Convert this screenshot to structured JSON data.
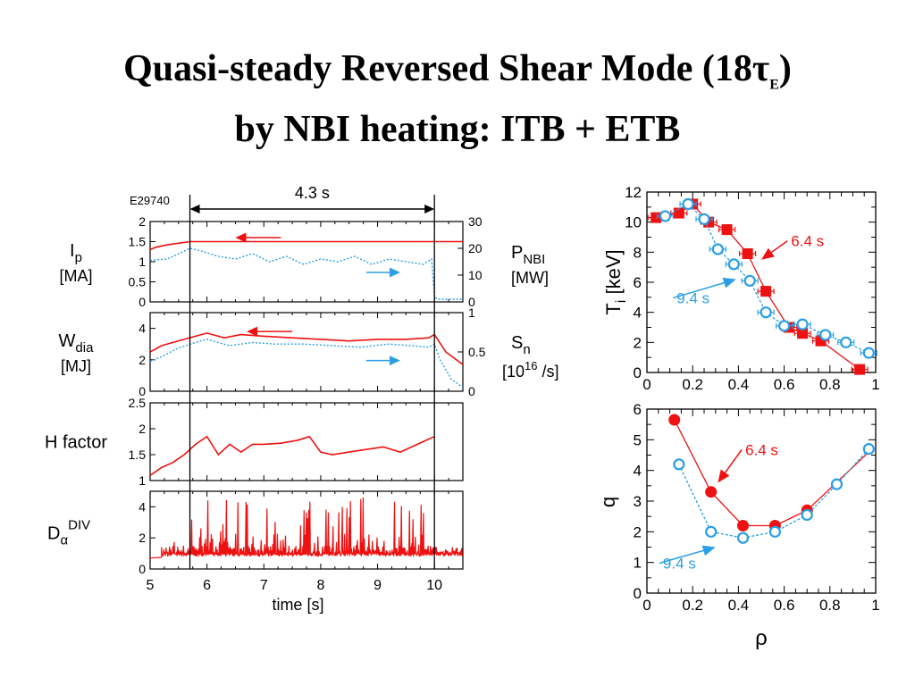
{
  "slide": {
    "title_line1_text": "Quasi-steady Reversed Shear Mode (18",
    "title_tau": "τ",
    "title_sub": "E",
    "title_close": ")",
    "title_line2": "by NBI heating: ITB + ETB"
  },
  "colors": {
    "red": "#ee1111",
    "blue": "#2a9fe6",
    "axis": "#000000"
  },
  "chart_data": [
    {
      "id": "time-traces",
      "type": "line",
      "shot_label": "E29740",
      "interval_label": "4.3 s",
      "interval": [
        5.7,
        10.0
      ],
      "xlabel": "time [s]",
      "xlim": [
        5,
        10.5
      ],
      "xticks": [
        5,
        6,
        7,
        8,
        9,
        10
      ],
      "panels": [
        {
          "name": "ip",
          "ylabel_left": "I",
          "ylabel_left_sub": "p",
          "ylabel_left_unit": "[MA]",
          "ylim_left": [
            0,
            2
          ],
          "yticks_left": [
            "0",
            "0.5",
            "1",
            "1.5",
            "2"
          ],
          "ylabel_right": "P",
          "ylabel_right_sub": "NBI",
          "ylabel_right_unit": "[MW]",
          "ylim_right": [
            0,
            30
          ],
          "yticks_right": [
            "0",
            "10",
            "20",
            "30"
          ],
          "series": [
            {
              "axis": "left",
              "style": "solid",
              "color": "red",
              "x": [
                5.0,
                5.1,
                5.3,
                5.5,
                5.7,
                6.0,
                10.5
              ],
              "y": [
                1.3,
                1.36,
                1.42,
                1.46,
                1.5,
                1.5,
                1.5
              ]
            },
            {
              "axis": "right",
              "style": "dotted",
              "color": "blue",
              "x": [
                5.0,
                5.3,
                5.5,
                5.7,
                5.9,
                6.2,
                6.5,
                6.8,
                7.1,
                7.4,
                7.7,
                8.0,
                8.3,
                8.6,
                8.9,
                9.2,
                9.5,
                9.8,
                9.95,
                10.0,
                10.05,
                10.5
              ],
              "y": [
                15.5,
                16,
                18,
                20,
                19,
                17,
                16,
                18,
                15,
                17,
                14,
                16,
                15,
                17,
                14,
                16,
                15,
                14,
                16,
                2,
                1,
                1
              ]
            }
          ],
          "arrows": [
            {
              "color": "red",
              "direction": "left",
              "axis": "left",
              "x": [
                6.5,
                7.3
              ],
              "y": 1.6
            },
            {
              "color": "blue",
              "direction": "right",
              "axis": "right",
              "x": [
                8.8,
                9.4
              ],
              "y": 11
            }
          ]
        },
        {
          "name": "wdia",
          "ylabel_left": "W",
          "ylabel_left_sub": "dia",
          "ylabel_left_unit": "[MJ]",
          "ylim_left": [
            0,
            5
          ],
          "yticks_left": [
            "0",
            "2",
            "4"
          ],
          "ylabel_right": "S",
          "ylabel_right_sub": "n",
          "ylabel_right_unit_pre": "[10",
          "ylabel_right_unit_sup": "16",
          "ylabel_right_unit_post": " /s]",
          "ylim_right": [
            0,
            1
          ],
          "yticks_right": [
            "0",
            "0.5",
            "1"
          ],
          "series": [
            {
              "axis": "left",
              "style": "solid",
              "color": "red",
              "x": [
                5.0,
                5.2,
                5.4,
                5.6,
                5.8,
                6.0,
                6.3,
                6.6,
                7.0,
                7.5,
                8.0,
                8.5,
                9.0,
                9.5,
                9.9,
                10.0,
                10.2,
                10.5
              ],
              "y": [
                2.5,
                2.9,
                3.1,
                3.3,
                3.5,
                3.7,
                3.4,
                3.6,
                3.5,
                3.4,
                3.3,
                3.2,
                3.3,
                3.3,
                3.4,
                3.6,
                2.5,
                1.7
              ]
            },
            {
              "axis": "right",
              "style": "dotted",
              "color": "blue",
              "x": [
                5.0,
                5.2,
                5.5,
                5.8,
                6.0,
                6.4,
                6.8,
                7.2,
                7.7,
                8.2,
                8.7,
                9.2,
                9.6,
                9.9,
                10.0,
                10.1,
                10.3,
                10.5
              ],
              "y": [
                0.38,
                0.44,
                0.55,
                0.62,
                0.66,
                0.58,
                0.62,
                0.6,
                0.6,
                0.58,
                0.56,
                0.6,
                0.58,
                0.56,
                0.6,
                0.4,
                0.15,
                0.05
              ]
            }
          ],
          "arrows": [
            {
              "color": "red",
              "direction": "left",
              "axis": "left",
              "x": [
                6.7,
                7.5
              ],
              "y": 3.8
            },
            {
              "color": "blue",
              "direction": "right",
              "axis": "right",
              "x": [
                8.8,
                9.4
              ],
              "y": 0.39
            }
          ]
        },
        {
          "name": "hfactor",
          "ylabel_left": "H factor",
          "ylim_left": [
            1,
            2.5
          ],
          "yticks_left": [
            "1",
            "1.5",
            "2",
            "2.5"
          ],
          "series": [
            {
              "axis": "left",
              "style": "solid",
              "color": "red",
              "x": [
                5.0,
                5.2,
                5.4,
                5.6,
                5.8,
                6.0,
                6.2,
                6.4,
                6.6,
                6.8,
                7.0,
                7.3,
                7.6,
                7.8,
                8.0,
                8.2,
                8.5,
                8.8,
                9.1,
                9.4,
                9.7,
                10.0
              ],
              "y": [
                1.1,
                1.25,
                1.35,
                1.5,
                1.7,
                1.85,
                1.5,
                1.7,
                1.55,
                1.7,
                1.7,
                1.72,
                1.78,
                1.85,
                1.55,
                1.5,
                1.55,
                1.6,
                1.65,
                1.55,
                1.7,
                1.85
              ]
            }
          ]
        },
        {
          "name": "dalpha",
          "ylabel_left": "D",
          "ylabel_left_sub": "α",
          "ylabel_left_sup": "DIV",
          "ylim_left": [
            0,
            5
          ],
          "yticks_left": [
            "0",
            "2",
            "4"
          ],
          "series": [
            {
              "axis": "left",
              "style": "spiky",
              "color": "red",
              "baseline": 0.9,
              "x_start": 5.2,
              "x_end": 10.5,
              "n_spikes": 260,
              "max": 4.8
            }
          ]
        }
      ]
    },
    {
      "id": "ti-profile",
      "type": "scatter",
      "ylabel": "T",
      "ylabel_sub": "i",
      "ylabel_unit": " [keV]",
      "xlim": [
        0,
        1
      ],
      "ylim": [
        0,
        12
      ],
      "xticks": [
        "0",
        "0.2",
        "0.4",
        "0.6",
        "0.8",
        "1"
      ],
      "yticks": [
        "0",
        "2",
        "4",
        "6",
        "8",
        "10",
        "12"
      ],
      "series": [
        {
          "name": "6.4 s",
          "color": "red",
          "marker": "filled",
          "line": "solid",
          "x": [
            0.04,
            0.14,
            0.2,
            0.27,
            0.35,
            0.44,
            0.52,
            0.62,
            0.68,
            0.76,
            0.93
          ],
          "y": [
            10.3,
            10.6,
            11.2,
            10.0,
            9.5,
            7.9,
            5.4,
            3.0,
            2.6,
            2.1,
            0.2
          ]
        },
        {
          "name": "9.4 s",
          "color": "blue",
          "marker": "open",
          "line": "dotted",
          "x": [
            0.08,
            0.18,
            0.25,
            0.31,
            0.38,
            0.45,
            0.52,
            0.6,
            0.68,
            0.78,
            0.87,
            0.97
          ],
          "y": [
            10.4,
            11.2,
            10.2,
            8.2,
            7.2,
            6.1,
            4.0,
            3.1,
            3.2,
            2.5,
            2.0,
            1.3
          ]
        }
      ],
      "annotations": [
        {
          "text": "6.4 s",
          "color": "red",
          "x": 0.63,
          "y": 8.4,
          "arrow_to": [
            0.5,
            7.5
          ]
        },
        {
          "text": "9.4 s",
          "color": "blue",
          "x": 0.13,
          "y": 4.6,
          "arrow_to": [
            0.39,
            6.2
          ]
        }
      ]
    },
    {
      "id": "q-profile",
      "type": "scatter",
      "ylabel": "q",
      "xlabel": "ρ",
      "xlim": [
        0,
        1
      ],
      "ylim": [
        0,
        6
      ],
      "xticks": [
        "0",
        "0.2",
        "0.4",
        "0.6",
        "0.8",
        "1"
      ],
      "yticks": [
        "0",
        "1",
        "2",
        "3",
        "4",
        "5",
        "6"
      ],
      "series": [
        {
          "name": "6.4 s",
          "color": "red",
          "marker": "filled",
          "line": "solid",
          "x": [
            0.12,
            0.28,
            0.42,
            0.56,
            0.7
          ],
          "y": [
            5.65,
            3.3,
            2.2,
            2.2,
            2.7
          ],
          "line_x": [
            0.12,
            0.28,
            0.42,
            0.56,
            0.7,
            0.97
          ],
          "line_y": [
            5.65,
            3.3,
            2.2,
            2.2,
            2.7,
            4.6
          ]
        },
        {
          "name": "9.4 s",
          "color": "blue",
          "marker": "open",
          "line": "dotted",
          "x": [
            0.14,
            0.28,
            0.42,
            0.56,
            0.7,
            0.83,
            0.97
          ],
          "y": [
            4.2,
            2.0,
            1.8,
            2.0,
            2.55,
            3.55,
            4.7
          ]
        }
      ],
      "annotations": [
        {
          "text": "6.4 s",
          "color": "red",
          "x": 0.43,
          "y": 4.5,
          "arrow_to": [
            0.31,
            3.6
          ]
        },
        {
          "text": "9.4 s",
          "color": "blue",
          "x": 0.07,
          "y": 0.8,
          "arrow_to": [
            0.3,
            1.5
          ]
        }
      ]
    }
  ]
}
